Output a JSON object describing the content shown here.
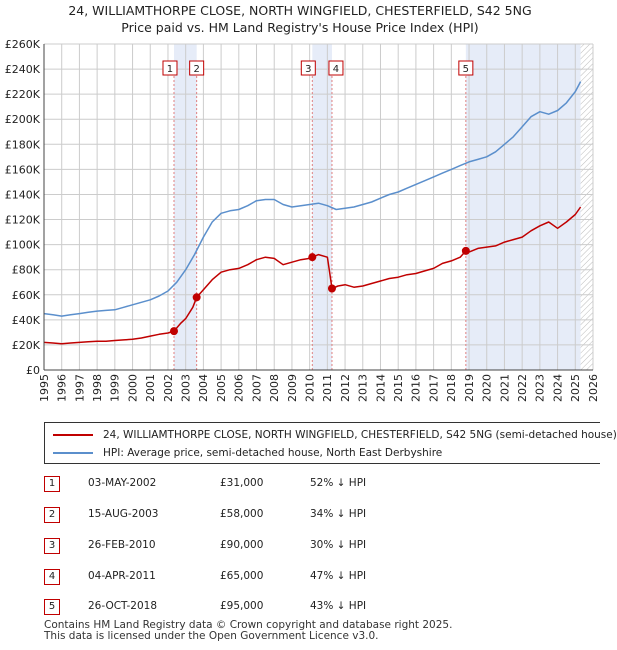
{
  "title_line1": "24, WILLIAMTHORPE CLOSE, NORTH WINGFIELD, CHESTERFIELD, S42 5NG",
  "title_line2": "Price paid vs. HM Land Registry's House Price Index (HPI)",
  "colors": {
    "property": "#c00000",
    "hpi": "#5b8fcc",
    "shade": "#e6ecf8",
    "grid": "#cccccc"
  },
  "chart_data": {
    "type": "line",
    "title": "24, WILLIAMTHORPE CLOSE, NORTH WINGFIELD, CHESTERFIELD, S42 5NG",
    "subtitle": "Price paid vs. HM Land Registry's House Price Index (HPI)",
    "xlim": [
      1995,
      2026
    ],
    "ylim": [
      0,
      260000
    ],
    "y_ticks": [
      0,
      20000,
      40000,
      60000,
      80000,
      100000,
      120000,
      140000,
      160000,
      180000,
      200000,
      220000,
      240000,
      260000
    ],
    "y_tick_labels": [
      "£0",
      "£20K",
      "£40K",
      "£60K",
      "£80K",
      "£100K",
      "£120K",
      "£140K",
      "£160K",
      "£180K",
      "£200K",
      "£220K",
      "£240K",
      "£260K"
    ],
    "x_ticks": [
      1995,
      1996,
      1997,
      1998,
      1999,
      2000,
      2001,
      2002,
      2003,
      2004,
      2005,
      2006,
      2007,
      2008,
      2009,
      2010,
      2011,
      2012,
      2013,
      2014,
      2015,
      2016,
      2017,
      2018,
      2019,
      2020,
      2021,
      2022,
      2023,
      2024,
      2025,
      2026
    ],
    "x_tick_labels": [
      "1995",
      "1996",
      "1997",
      "1998",
      "1999",
      "2000",
      "2001",
      "2002",
      "2003",
      "2004",
      "2005",
      "2006",
      "2007",
      "2008",
      "2009",
      "2010",
      "2011",
      "2012",
      "2013",
      "2014",
      "2015",
      "2016",
      "2017",
      "2018",
      "2019",
      "2020",
      "2021",
      "2022",
      "2023",
      "2024",
      "2025",
      "2026"
    ],
    "grid": true,
    "legend_position": "below",
    "shaded_regions": [
      [
        2002.34,
        2003.62
      ],
      [
        2010.15,
        2011.26
      ],
      [
        2018.82,
        2025.3
      ]
    ],
    "hatched_region": [
      2025.3,
      2026
    ],
    "series": [
      {
        "name": "24, WILLIAMTHORPE CLOSE, NORTH WINGFIELD, CHESTERFIELD, S42 5NG (semi-detached house)",
        "color": "#c00000",
        "x": [
          1995,
          1995.5,
          1996,
          1996.5,
          1997,
          1997.5,
          1998,
          1998.5,
          1999,
          1999.5,
          2000,
          2000.5,
          2001,
          2001.5,
          2002,
          2002.34,
          2002.7,
          2003,
          2003.4,
          2003.62,
          2004,
          2004.5,
          2005,
          2005.5,
          2006,
          2006.5,
          2007,
          2007.5,
          2008,
          2008.5,
          2009,
          2009.5,
          2010,
          2010.15,
          2010.5,
          2011,
          2011.26,
          2011.6,
          2012,
          2012.5,
          2013,
          2013.5,
          2014,
          2014.5,
          2015,
          2015.5,
          2016,
          2016.5,
          2017,
          2017.5,
          2018,
          2018.5,
          2018.82,
          2019,
          2019.5,
          2020,
          2020.5,
          2021,
          2021.5,
          2022,
          2022.5,
          2023,
          2023.5,
          2024,
          2024.5,
          2025,
          2025.3
        ],
        "values": [
          22000,
          21500,
          21000,
          21500,
          22000,
          22500,
          23000,
          23000,
          23500,
          24000,
          24500,
          25500,
          27000,
          28500,
          29500,
          31000,
          37000,
          41000,
          50000,
          58000,
          64000,
          72000,
          78000,
          80000,
          81000,
          84000,
          88000,
          90000,
          89000,
          84000,
          86000,
          88000,
          89000,
          90000,
          92000,
          90000,
          65000,
          67000,
          68000,
          66000,
          67000,
          69000,
          71000,
          73000,
          74000,
          76000,
          77000,
          79000,
          81000,
          85000,
          87000,
          90000,
          95000,
          94000,
          97000,
          98000,
          99000,
          102000,
          104000,
          106000,
          111000,
          115000,
          118000,
          113000,
          118000,
          124000,
          130000
        ]
      },
      {
        "name": "HPI: Average price, semi-detached house, North East Derbyshire",
        "color": "#5b8fcc",
        "x": [
          1995,
          1995.5,
          1996,
          1996.5,
          1997,
          1997.5,
          1998,
          1998.5,
          1999,
          1999.5,
          2000,
          2000.5,
          2001,
          2001.5,
          2002,
          2002.5,
          2003,
          2003.5,
          2004,
          2004.5,
          2005,
          2005.5,
          2006,
          2006.5,
          2007,
          2007.5,
          2008,
          2008.5,
          2009,
          2009.5,
          2010,
          2010.5,
          2011,
          2011.5,
          2012,
          2012.5,
          2013,
          2013.5,
          2014,
          2014.5,
          2015,
          2015.5,
          2016,
          2016.5,
          2017,
          2017.5,
          2018,
          2018.5,
          2019,
          2019.5,
          2020,
          2020.5,
          2021,
          2021.5,
          2022,
          2022.5,
          2023,
          2023.5,
          2024,
          2024.5,
          2025,
          2025.3
        ],
        "values": [
          45000,
          44000,
          43000,
          44000,
          45000,
          46000,
          47000,
          47500,
          48000,
          50000,
          52000,
          54000,
          56000,
          59000,
          63000,
          70000,
          80000,
          92000,
          106000,
          118000,
          125000,
          127000,
          128000,
          131000,
          135000,
          136000,
          136000,
          132000,
          130000,
          131000,
          132000,
          133000,
          131000,
          128000,
          129000,
          130000,
          132000,
          134000,
          137000,
          140000,
          142000,
          145000,
          148000,
          151000,
          154000,
          157000,
          160000,
          163000,
          166000,
          168000,
          170000,
          174000,
          180000,
          186000,
          194000,
          202000,
          206000,
          204000,
          207000,
          213000,
          222000,
          230000
        ]
      }
    ],
    "sales": [
      {
        "n": "1",
        "x": 2002.34,
        "y": 31000
      },
      {
        "n": "2",
        "x": 2003.62,
        "y": 58000
      },
      {
        "n": "3",
        "x": 2010.15,
        "y": 90000
      },
      {
        "n": "4",
        "x": 2011.26,
        "y": 65000
      },
      {
        "n": "5",
        "x": 2018.82,
        "y": 95000
      }
    ]
  },
  "legend": {
    "property": "24, WILLIAMTHORPE CLOSE, NORTH WINGFIELD, CHESTERFIELD, S42 5NG (semi-detached house)",
    "hpi": "HPI: Average price, semi-detached house, North East Derbyshire"
  },
  "sales_table": [
    {
      "n": "1",
      "date": "03-MAY-2002",
      "price": "£31,000",
      "hpi": "52% ↓ HPI"
    },
    {
      "n": "2",
      "date": "15-AUG-2003",
      "price": "£58,000",
      "hpi": "34% ↓ HPI"
    },
    {
      "n": "3",
      "date": "26-FEB-2010",
      "price": "£90,000",
      "hpi": "30% ↓ HPI"
    },
    {
      "n": "4",
      "date": "04-APR-2011",
      "price": "£65,000",
      "hpi": "47% ↓ HPI"
    },
    {
      "n": "5",
      "date": "26-OCT-2018",
      "price": "£95,000",
      "hpi": "43% ↓ HPI"
    }
  ],
  "footer_line1": "Contains HM Land Registry data © Crown copyright and database right 2025.",
  "footer_line2": "This data is licensed under the Open Government Licence v3.0."
}
